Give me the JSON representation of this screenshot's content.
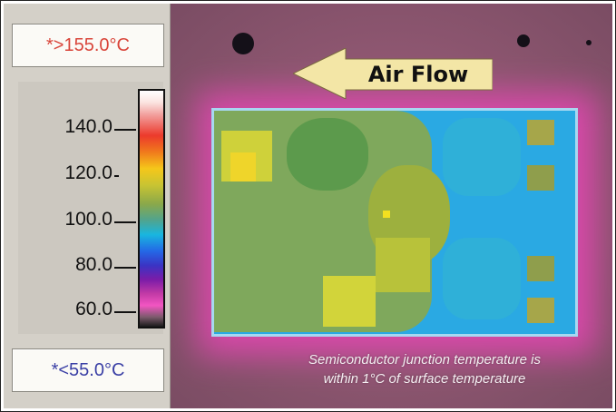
{
  "scale": {
    "max_label": "*>155.0°C",
    "min_label": "*<55.0°C",
    "ticks": [
      "140.0",
      "120.0",
      "100.0",
      "80.0",
      "60.0"
    ]
  },
  "image": {
    "arrow_label": "Air Flow",
    "caption_line1": "Semiconductor junction temperature is",
    "caption_line2": "within 1°C of surface temperature"
  }
}
